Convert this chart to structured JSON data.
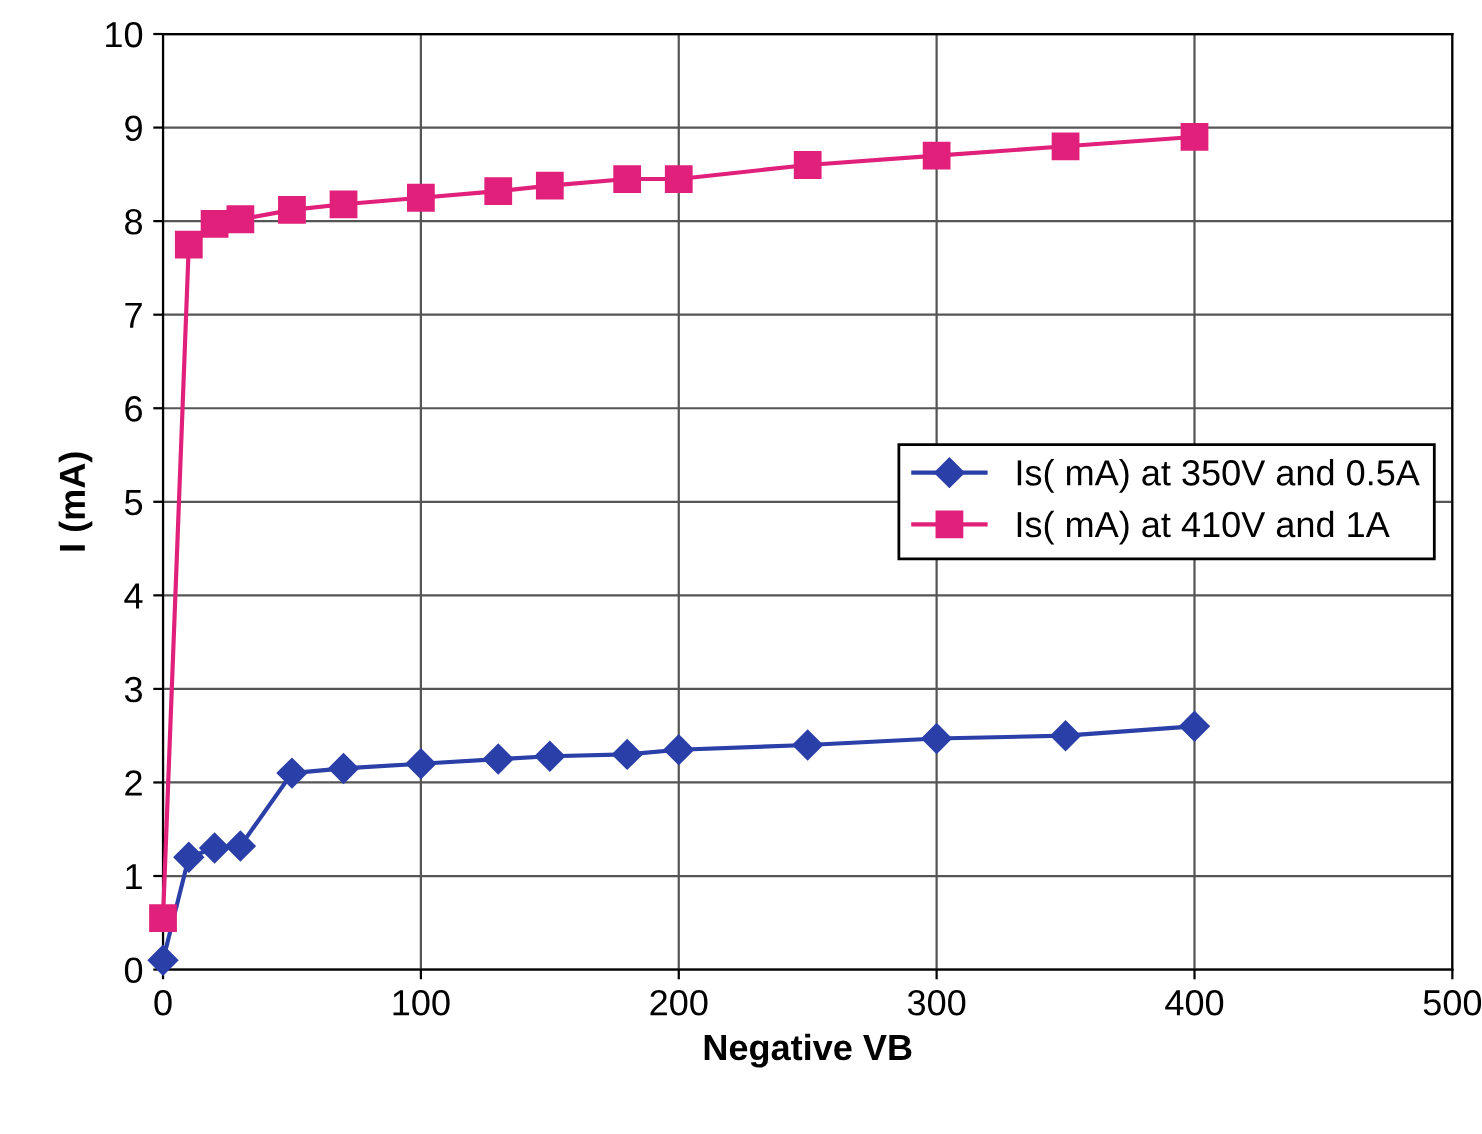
{
  "chart_data": {
    "type": "line",
    "xlabel": "Negative VB",
    "ylabel": "I (mA)",
    "xlim": [
      0,
      500
    ],
    "xticks": [
      0,
      100,
      200,
      300,
      400,
      500
    ],
    "ylim": [
      0,
      10
    ],
    "yticks": [
      0,
      1,
      2,
      3,
      4,
      5,
      6,
      7,
      8,
      9,
      10
    ],
    "grid": true,
    "legend": "right",
    "line_style": "solid",
    "series": [
      {
        "name": "Is( mA) at 350V and 0.5A",
        "color": "#2b3fa8",
        "marker": "diamond",
        "x": [
          0,
          10,
          20,
          30,
          50,
          70,
          100,
          130,
          150,
          180,
          200,
          250,
          300,
          350,
          400
        ],
        "values": [
          0.1,
          1.2,
          1.3,
          1.32,
          2.1,
          2.15,
          2.2,
          2.25,
          2.28,
          2.3,
          2.35,
          2.4,
          2.47,
          2.5,
          2.6
        ]
      },
      {
        "name": "Is( mA) at 410V and 1A",
        "color": "#e0207a",
        "marker": "square",
        "x": [
          0,
          10,
          20,
          30,
          50,
          70,
          100,
          130,
          150,
          180,
          200,
          250,
          300,
          350,
          400
        ],
        "values": [
          0.55,
          7.75,
          7.97,
          8.02,
          8.12,
          8.18,
          8.25,
          8.32,
          8.38,
          8.45,
          8.45,
          8.6,
          8.7,
          8.8,
          8.9
        ]
      }
    ]
  }
}
